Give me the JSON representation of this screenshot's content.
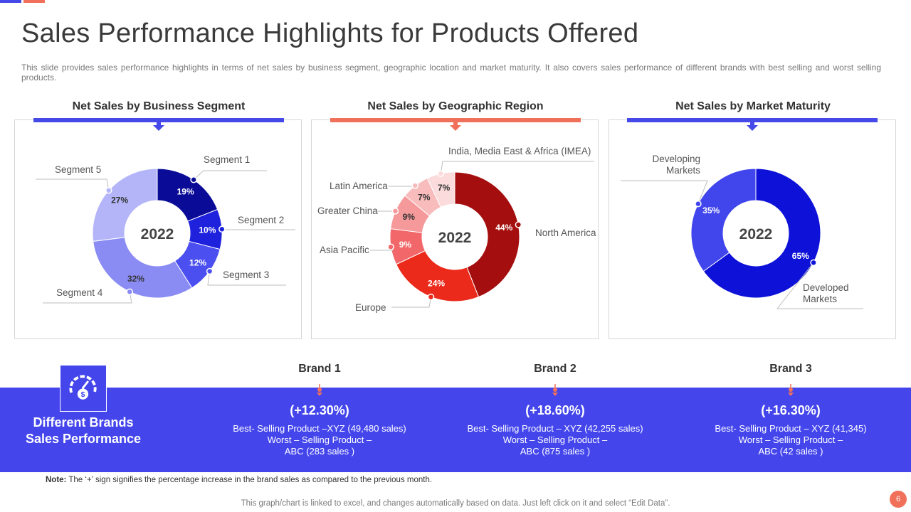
{
  "title": "Sales Performance Highlights for Products Offered",
  "description": "This slide provides sales performance highlights in terms of net sales by business segment, geographic location and market maturity. It also covers sales performance of different brands with best selling and worst selling products.",
  "colors": {
    "blue": "#4446ec",
    "coral": "#f0705a"
  },
  "panels": [
    {
      "heading": "Net Sales by Business Segment",
      "bar_color": "#4449e8"
    },
    {
      "heading": "Net Sales by Geographic Region",
      "bar_color": "#f0705a"
    },
    {
      "heading": "Net Sales by Market Maturity",
      "bar_color": "#4449e8"
    }
  ],
  "chart_data": [
    {
      "type": "pie",
      "style": "donut",
      "center_label": "2022",
      "categories": [
        "Segment 1",
        "Segment 2",
        "Segment 3",
        "Segment 4",
        "Segment 5"
      ],
      "values": [
        19,
        10,
        12,
        32,
        27
      ],
      "value_labels": [
        "19%",
        "10%",
        "12%",
        "32%",
        "27%"
      ],
      "colors": [
        "#0a0c98",
        "#1e22dd",
        "#4b4ff0",
        "#8a8cf4",
        "#b3b5f8"
      ]
    },
    {
      "type": "pie",
      "style": "donut",
      "center_label": "2022",
      "categories": [
        "North America",
        "Europe",
        "Asia Pacific",
        "Greater China",
        "Latin America",
        "India, Media East & Africa (IMEA)"
      ],
      "values": [
        44,
        24,
        9,
        9,
        7,
        7
      ],
      "value_labels": [
        "44%",
        "24%",
        "9%",
        "9%",
        "7%",
        "7%"
      ],
      "colors": [
        "#a50e0e",
        "#ec2a1c",
        "#f2686a",
        "#f5999a",
        "#f8bcbc",
        "#fbdbdb"
      ]
    },
    {
      "type": "pie",
      "style": "donut",
      "center_label": "2022",
      "categories": [
        "Developed Markets",
        "Developing Markets"
      ],
      "category_lines": [
        [
          "Developed",
          "Markets"
        ],
        [
          "Developing",
          "Markets"
        ]
      ],
      "values": [
        65,
        35
      ],
      "value_labels": [
        "65%",
        "35%"
      ],
      "colors": [
        "#0e12d8",
        "#4146ec"
      ]
    }
  ],
  "brands_section": {
    "title_line1": "Different Brands",
    "title_line2": "Sales Performance",
    "icon": "speedometer-dollar-icon",
    "brands": [
      {
        "name": "Brand 1",
        "change": "(+12.30%)",
        "line1": "Best- Selling Product –XYZ  (49,480 sales)",
        "line2": "Worst – Selling Product –",
        "line3": "ABC (283 sales )"
      },
      {
        "name": "Brand 2",
        "change": "(+18.60%)",
        "line1": "Best- Selling Product – XYZ  (42,255 sales)",
        "line2": "Worst – Selling Product –",
        "line3": "ABC (875 sales )"
      },
      {
        "name": "Brand 3",
        "change": "(+16.30%)",
        "line1": "Best- Selling Product – XYZ  (41,345)",
        "line2": "Worst – Selling Product –",
        "line3": "ABC (42 sales )"
      }
    ]
  },
  "note": {
    "label": "Note:",
    "text": "The ‘+’ sign signifies the percentage increase in the brand sales as compared to the previous month."
  },
  "footer": "This graph/chart is linked to excel, and changes automatically based on data. Just left click on it and select “Edit Data”.",
  "page_number": "6"
}
